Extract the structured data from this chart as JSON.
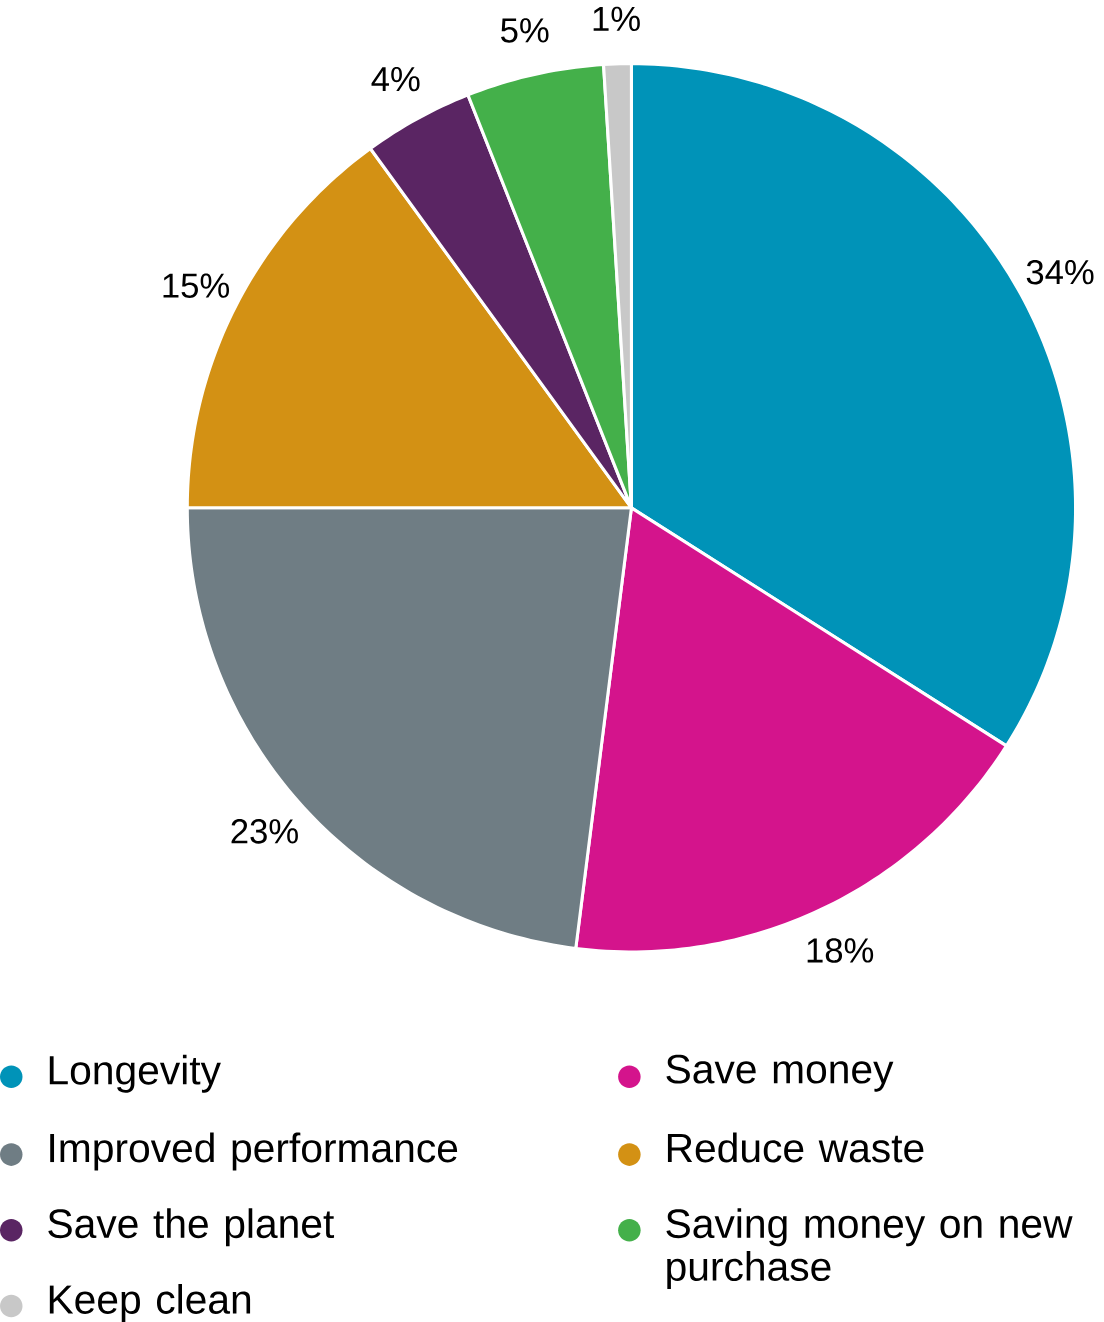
{
  "chart_data": {
    "type": "pie",
    "categories": [
      "Longevity",
      "Save money",
      "Improved performance",
      "Reduce waste",
      "Save the planet",
      "Saving money on new purchase",
      "Keep clean"
    ],
    "values": [
      34,
      18,
      23,
      15,
      4,
      5,
      1
    ],
    "value_labels": [
      "34%",
      "18%",
      "23%",
      "15%",
      "4%",
      "5%",
      "1%"
    ],
    "colors": [
      "#0093b8",
      "#d4148c",
      "#6f7d84",
      "#d39114",
      "#5a2563",
      "#44b04a",
      "#c8c8c8"
    ],
    "legend": "bottom"
  }
}
